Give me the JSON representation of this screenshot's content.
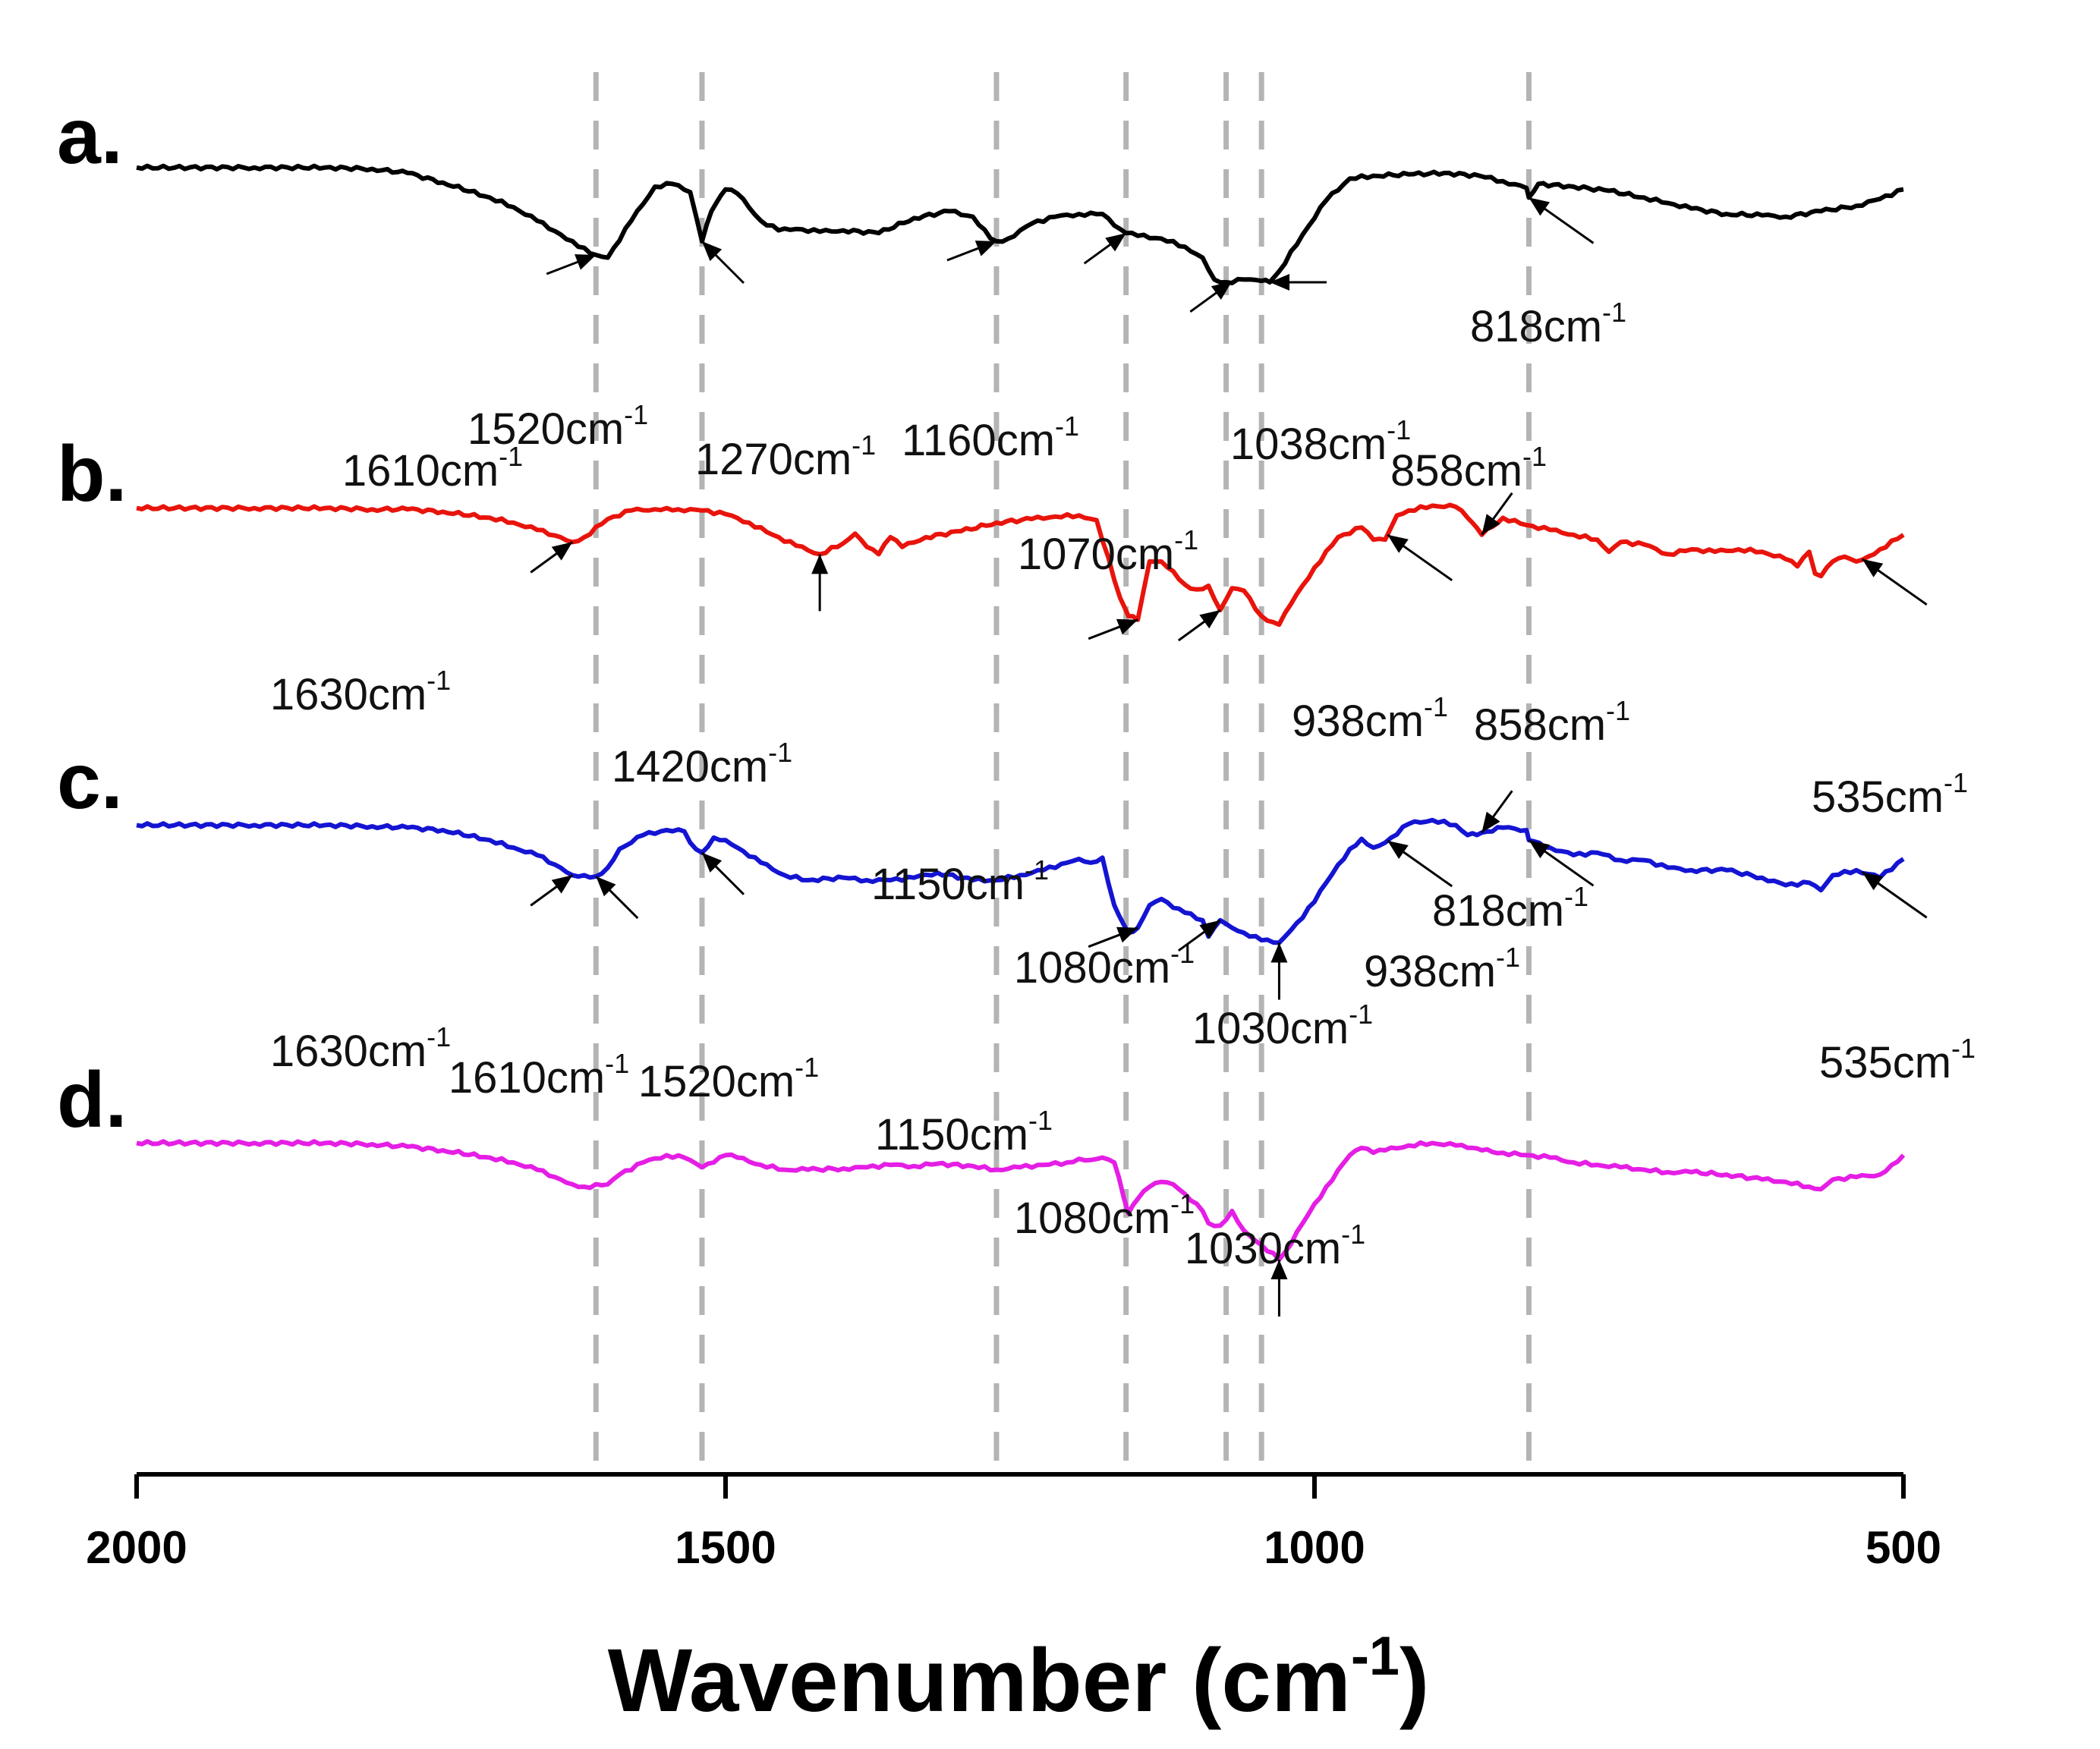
{
  "chart_data": {
    "type": "line",
    "title": "",
    "xlabel": "Wavenumber (cm",
    "xlabel_sup": "-1",
    "xlabel_close": ")",
    "xlim": [
      2000,
      500
    ],
    "ticks": [
      {
        "value": 2000,
        "label": "2000"
      },
      {
        "value": 1500,
        "label": "1500"
      },
      {
        "value": 1000,
        "label": "1000"
      },
      {
        "value": 500,
        "label": "500"
      }
    ],
    "reference_lines": [
      1610,
      1520,
      1270,
      1160,
      1075,
      1045,
      818
    ],
    "colors": {
      "a": "#000000",
      "b": "#e8140c",
      "c": "#1414d2",
      "d": "#e51ee5",
      "ref": "#b4b4b4"
    },
    "series": [
      {
        "id": "a",
        "name": "a.",
        "color": "#000000",
        "x": [
          2000,
          1900,
          1840,
          1800,
          1770,
          1740,
          1700,
          1680,
          1660,
          1640,
          1625,
          1610,
          1600,
          1580,
          1560,
          1545,
          1530,
          1520,
          1512,
          1500,
          1490,
          1470,
          1455,
          1440,
          1420,
          1400,
          1370,
          1340,
          1310,
          1290,
          1275,
          1270,
          1260,
          1240,
          1220,
          1200,
          1180,
          1165,
          1160,
          1150,
          1130,
          1110,
          1095,
          1085,
          1075,
          1060,
          1045,
          1038,
          1030,
          1010,
          990,
          970,
          950,
          920,
          890,
          860,
          840,
          820,
          818,
          810,
          780,
          750,
          720,
          700,
          680,
          650,
          620,
          600,
          570,
          540,
          520,
          500
        ],
        "y": [
          94,
          94,
          94,
          93,
          90,
          83,
          72,
          65,
          55,
          45,
          36,
          30,
          28,
          55,
          80,
          82,
          76,
          40,
          62,
          78,
          75,
          55,
          48,
          49,
          47,
          48,
          46,
          57,
          62,
          58,
          42,
          40,
          42,
          53,
          58,
          60,
          60,
          49,
          46,
          44,
          42,
          36,
          28,
          12,
          10,
          12,
          11,
          10,
          18,
          45,
          70,
          86,
          88,
          89,
          90,
          88,
          84,
          79,
          72,
          82,
          80,
          77,
          72,
          68,
          64,
          60,
          59,
          58,
          62,
          66,
          71,
          78
        ]
      },
      {
        "id": "b",
        "name": "b.",
        "color": "#e8140c",
        "x": [
          2000,
          1900,
          1840,
          1800,
          1770,
          1740,
          1700,
          1680,
          1660,
          1640,
          1630,
          1620,
          1600,
          1580,
          1560,
          1550,
          1540,
          1520,
          1500,
          1480,
          1460,
          1440,
          1420,
          1400,
          1390,
          1380,
          1370,
          1360,
          1350,
          1330,
          1300,
          1270,
          1240,
          1220,
          1200,
          1185,
          1165,
          1158,
          1150,
          1140,
          1130,
          1120,
          1110,
          1100,
          1090,
          1080,
          1070,
          1060,
          1045,
          1035,
          1030,
          1020,
          1000,
          980,
          960,
          950,
          940,
          930,
          920,
          900,
          880,
          870,
          858,
          840,
          820,
          800,
          780,
          760,
          750,
          740,
          720,
          700,
          680,
          660,
          640,
          620,
          600,
          590,
          580,
          575,
          570,
          560,
          550,
          540,
          530,
          520,
          500
        ],
        "y": [
          94,
          94,
          94,
          93,
          93,
          91,
          86,
          82,
          76,
          70,
          66,
          70,
          85,
          92,
          93,
          94,
          93,
          92,
          89,
          82,
          72,
          63,
          56,
          65,
          73,
          62,
          56,
          70,
          62,
          70,
          75,
          82,
          85,
          87,
          88,
          84,
          20,
          5,
          2,
          50,
          50,
          42,
          31,
          27,
          30,
          10,
          28,
          26,
          5,
          0,
          -2,
          15,
          45,
          70,
          78,
          68,
          68,
          88,
          92,
          96,
          95,
          86,
          72,
          86,
          80,
          76,
          72,
          68,
          58,
          66,
          64,
          56,
          60,
          58,
          60,
          58,
          52,
          46,
          58,
          40,
          38,
          50,
          54,
          50,
          54,
          60,
          72
        ]
      },
      {
        "id": "c",
        "name": "c.",
        "color": "#1414d2",
        "x": [
          2000,
          1900,
          1840,
          1800,
          1770,
          1740,
          1700,
          1680,
          1660,
          1640,
          1630,
          1620,
          1610,
          1600,
          1590,
          1570,
          1550,
          1535,
          1530,
          1520,
          1510,
          1500,
          1490,
          1470,
          1450,
          1430,
          1400,
          1380,
          1360,
          1340,
          1320,
          1290,
          1270,
          1250,
          1230,
          1210,
          1200,
          1190,
          1180,
          1170,
          1158,
          1150,
          1140,
          1130,
          1120,
          1110,
          1095,
          1090,
          1080,
          1070,
          1060,
          1045,
          1030,
          1025,
          1010,
          990,
          970,
          960,
          950,
          940,
          920,
          900,
          880,
          870,
          858,
          840,
          820,
          818,
          800,
          780,
          760,
          740,
          720,
          700,
          680,
          650,
          620,
          600,
          580,
          570,
          560,
          540,
          520,
          500
        ],
        "y": [
          94,
          94,
          94,
          93,
          92,
          90,
          82,
          76,
          70,
          60,
          54,
          54,
          53,
          60,
          75,
          86,
          90,
          89,
          80,
          72,
          84,
          82,
          76,
          64,
          54,
          50,
          52,
          50,
          50,
          52,
          56,
          50,
          50,
          54,
          58,
          64,
          67,
          64,
          68,
          30,
          8,
          12,
          30,
          35,
          28,
          24,
          18,
          5,
          18,
          12,
          8,
          2,
          0,
          5,
          20,
          48,
          75,
          83,
          76,
          80,
          95,
          98,
          94,
          86,
          88,
          92,
          90,
          82,
          76,
          70,
          72,
          66,
          66,
          60,
          58,
          58,
          52,
          46,
          48,
          42,
          54,
          58,
          52,
          67
        ]
      },
      {
        "id": "d",
        "name": "d.",
        "color": "#e51ee5",
        "x": [
          2000,
          1900,
          1840,
          1800,
          1770,
          1740,
          1700,
          1680,
          1660,
          1640,
          1630,
          1620,
          1600,
          1590,
          1570,
          1550,
          1535,
          1520,
          1510,
          1500,
          1490,
          1470,
          1450,
          1430,
          1400,
          1380,
          1360,
          1340,
          1320,
          1290,
          1270,
          1250,
          1230,
          1210,
          1200,
          1190,
          1180,
          1170,
          1158,
          1150,
          1140,
          1130,
          1120,
          1110,
          1095,
          1090,
          1080,
          1070,
          1060,
          1045,
          1030,
          1025,
          1010,
          990,
          970,
          960,
          950,
          940,
          920,
          900,
          880,
          870,
          858,
          840,
          820,
          800,
          780,
          760,
          740,
          720,
          700,
          680,
          650,
          620,
          600,
          580,
          570,
          560,
          540,
          520,
          510,
          500
        ],
        "y": [
          96,
          96,
          96,
          95,
          93,
          90,
          84,
          80,
          74,
          66,
          62,
          60,
          62,
          70,
          80,
          86,
          84,
          76,
          80,
          86,
          84,
          78,
          74,
          74,
          75,
          76,
          78,
          77,
          79,
          77,
          74,
          76,
          78,
          80,
          83,
          82,
          84,
          80,
          38,
          50,
          60,
          64,
          62,
          54,
          40,
          30,
          28,
          40,
          24,
          12,
          0,
          6,
          30,
          60,
          86,
          92,
          88,
          90,
          94,
          96,
          94,
          92,
          90,
          88,
          86,
          84,
          80,
          78,
          76,
          74,
          72,
          72,
          70,
          66,
          64,
          60,
          58,
          66,
          68,
          70,
          78,
          86
        ]
      }
    ],
    "baselines": {
      "a": 300,
      "b": 740,
      "c": 1160,
      "d": 1580
    },
    "amplitude": {
      "a": 1.8,
      "b": 1.6,
      "c": 1.65,
      "d": 1.6
    },
    "arrows": [
      {
        "series": "a",
        "x": 1610,
        "dir": "right",
        "label": "1610cm",
        "sup": "-1"
      },
      {
        "series": "a",
        "x": 1520,
        "dir": "up-left",
        "label": "1520cm",
        "sup": "-1"
      },
      {
        "series": "a",
        "x": 1270,
        "dir": "right",
        "label": "1270cm",
        "sup": "-1"
      },
      {
        "series": "a",
        "x": 1160,
        "dir": "up-right",
        "label": "1160cm",
        "sup": "-1"
      },
      {
        "series": "a",
        "x": 1070,
        "dir": "up-right",
        "label": "1070cm",
        "sup": "-1"
      },
      {
        "series": "a",
        "x": 1038,
        "dir": "left",
        "label": "1038cm",
        "sup": "-1"
      },
      {
        "series": "a",
        "x": 818,
        "dir": "down-left",
        "label": "818cm",
        "sup": "-1"
      },
      {
        "series": "b",
        "x": 1630,
        "dir": "up-right",
        "label": "1630cm",
        "sup": "-1"
      },
      {
        "series": "b",
        "x": 1420,
        "dir": "up",
        "label": "1420cm",
        "sup": "-1"
      },
      {
        "series": "b",
        "x": 938,
        "dir": "down-left",
        "label": "938cm",
        "sup": "-1"
      },
      {
        "series": "b",
        "x": 858,
        "dir": "down",
        "label": "858cm",
        "sup": "-1"
      },
      {
        "series": "b",
        "x": 535,
        "dir": "down-left",
        "label": "535cm",
        "sup": "-1"
      },
      {
        "series": "b",
        "x": 1150,
        "dir": "right",
        "label": "1150cm",
        "sup": "-1"
      },
      {
        "series": "b",
        "x": 1080,
        "dir": "up-right",
        "label": "1080cm",
        "sup": "-1"
      },
      {
        "series": "c",
        "x": 1630,
        "dir": "up-right",
        "label": "1630cm",
        "sup": "-1"
      },
      {
        "series": "c",
        "x": 1610,
        "dir": "up-left",
        "label": "1610cm",
        "sup": "-1"
      },
      {
        "series": "c",
        "x": 1520,
        "dir": "up-left",
        "label": "1520cm",
        "sup": "-1"
      },
      {
        "series": "c",
        "x": 1030,
        "dir": "up",
        "label": "1030cm",
        "sup": "-1"
      },
      {
        "series": "c",
        "x": 938,
        "dir": "down-left",
        "label": "938cm",
        "sup": "-1"
      },
      {
        "series": "c",
        "x": 858,
        "dir": "down",
        "label": "858cm",
        "sup": "-1"
      },
      {
        "series": "c",
        "x": 818,
        "dir": "down-left",
        "label": "818cm",
        "sup": "-1"
      },
      {
        "series": "c",
        "x": 535,
        "dir": "down-left",
        "label": "535cm",
        "sup": "-1"
      },
      {
        "series": "c",
        "x": 1150,
        "dir": "right",
        "label": "1150cm",
        "sup": "-1"
      },
      {
        "series": "c",
        "x": 1080,
        "dir": "up-right",
        "label": "1080cm",
        "sup": "-1"
      },
      {
        "series": "d",
        "x": 1030,
        "dir": "up",
        "label": "1030cm",
        "sup": "-1"
      }
    ]
  }
}
